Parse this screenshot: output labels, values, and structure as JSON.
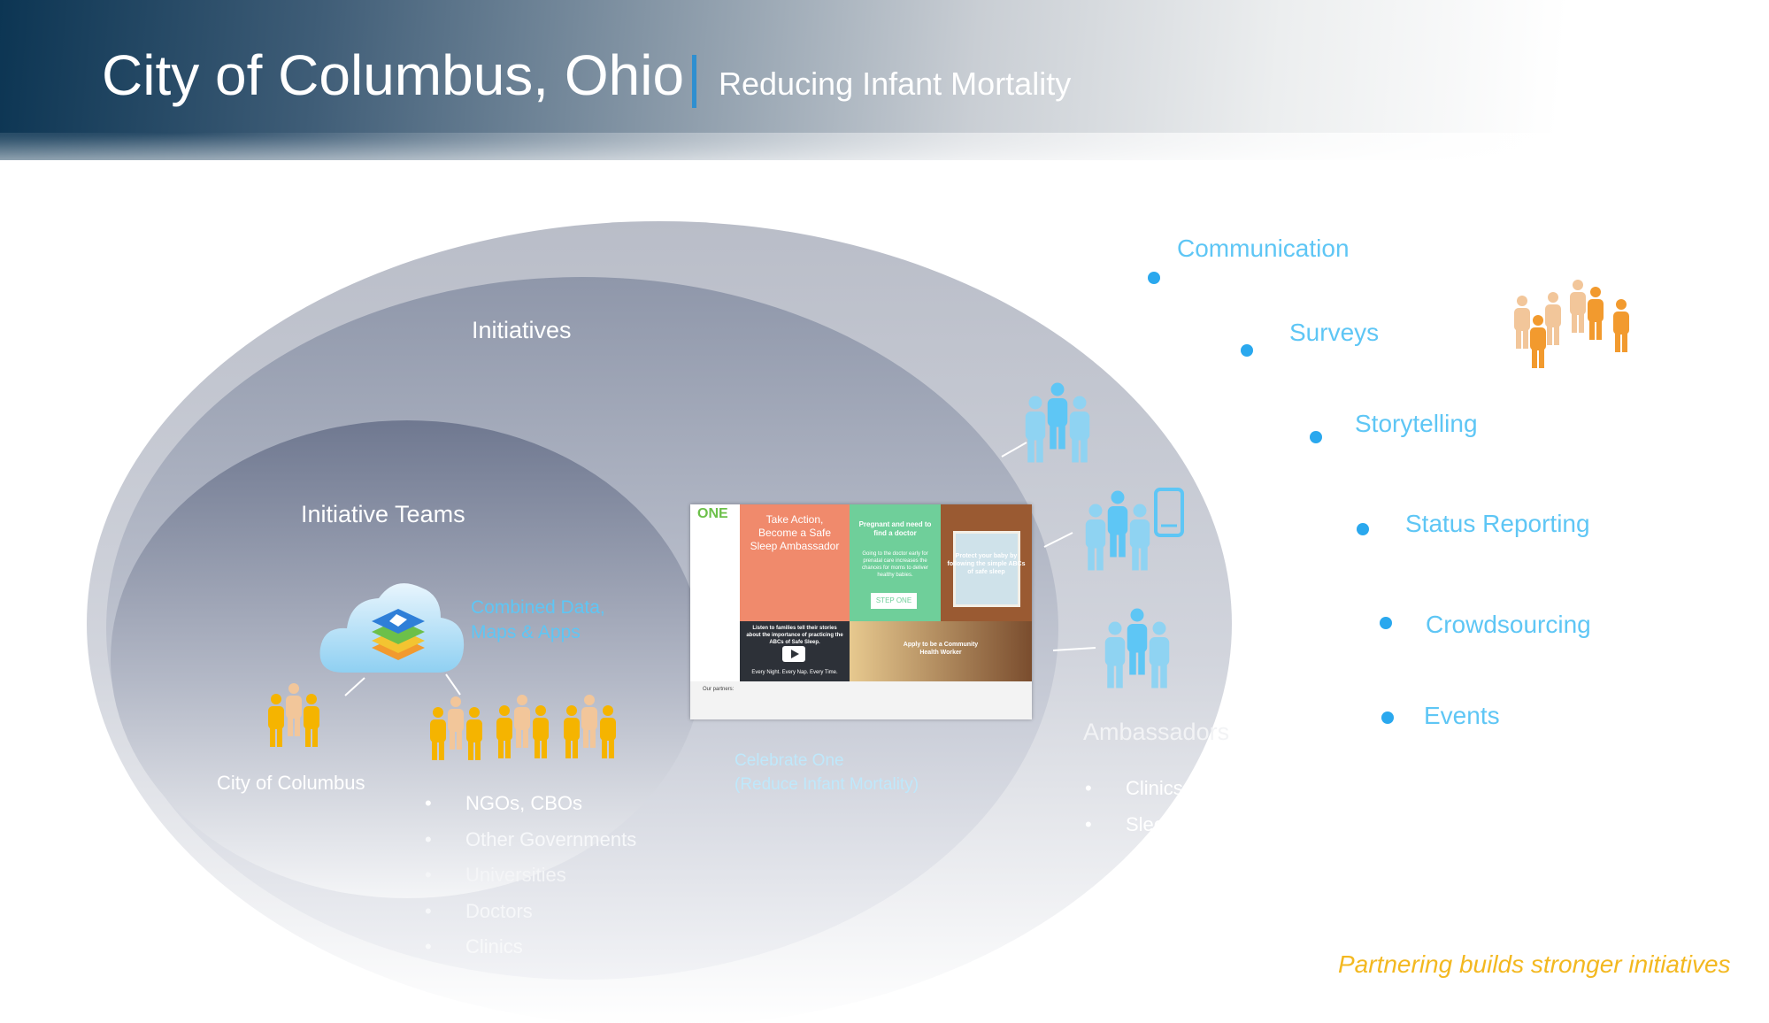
{
  "header": {
    "title": "City of Columbus, Ohio",
    "subtitle": "Reducing Infant Mortality"
  },
  "diagram": {
    "outer_label": "Initiatives",
    "inner_label": "Initiative Teams",
    "cloud_label_line1": "Combined Data,",
    "cloud_label_line2": "Maps & Apps",
    "city_label": "City of Columbus",
    "partners": [
      "NGOs, CBOs",
      "Other Governments",
      "Universities",
      "Doctors",
      "Clinics"
    ],
    "website_caption_line1": "Celebrate One",
    "website_caption_line2": "(Reduce Infant Mortality)",
    "ambassadors_label": "Ambassadors",
    "ambassadors_items": [
      "Clinics",
      "Sleep Am"
    ],
    "bullet_glyph": "•"
  },
  "activities": [
    "Communication",
    "Surveys",
    "Storytelling",
    "Status Reporting",
    "Crowdsourcing",
    "Events"
  ],
  "website": {
    "logo": "ONE",
    "tile1": "Take Action, Become a Safe Sleep Ambassador",
    "tile2_title": "Pregnant and need to find a doctor",
    "tile2_body": "Going to the doctor early for prenatal care increases the chances for moms to deliver healthy babies.",
    "tile2_logo": "STEP ONE",
    "tile3": "Protect your baby by following the simple ABCs of safe sleep",
    "tile4": "Listen to families tell their stories about the importance of practicing the ABCs of Safe Sleep.",
    "tile4_footer": "Every Night. Every Nap. Every Time.",
    "tile6": "Apply to be a Community Health Worker",
    "partners_label": "Our partners:"
  },
  "tagline": "Partnering builds stronger initiatives",
  "colors": {
    "header_dark": "#0c3553",
    "title_bar": "#2f8fd0",
    "people_gold": "#f5b400",
    "people_peach": "#f2c69a",
    "people_blue": "#8fd3f2",
    "people_orange": "#f29a2e",
    "activity_blue": "#5ec6f5",
    "tagline_gold": "#f3b820"
  }
}
